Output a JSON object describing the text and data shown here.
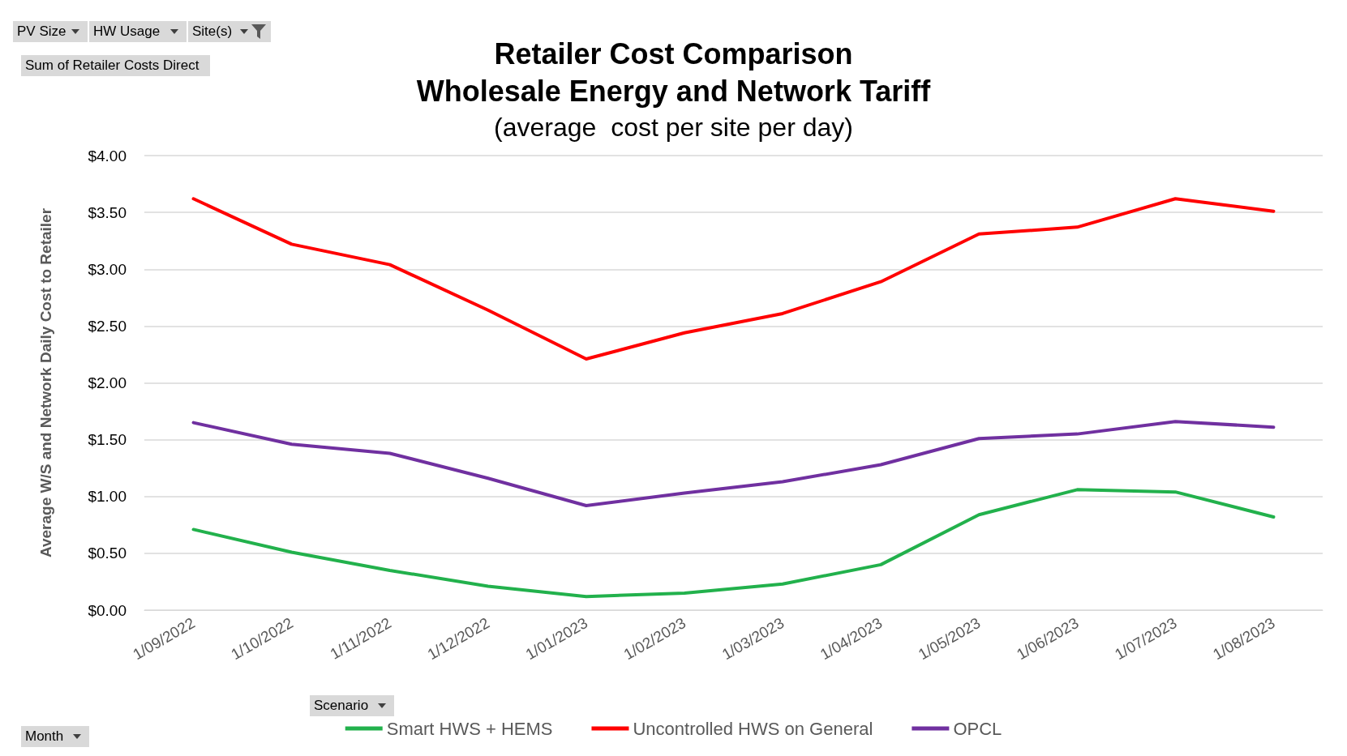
{
  "chart_data": {
    "type": "line",
    "title": "Retailer Cost Comparison\nWholesale Energy and Network Tariff",
    "subtitle": "(average  cost per site per day)",
    "ylabel": "Average W/S and Network Daily Cost to Retailer",
    "categories": [
      "1/09/2022",
      "1/10/2022",
      "1/11/2022",
      "1/12/2022",
      "1/01/2023",
      "1/02/2023",
      "1/03/2023",
      "1/04/2023",
      "1/05/2023",
      "1/06/2023",
      "1/07/2023",
      "1/08/2023"
    ],
    "series": [
      {
        "name": "Smart HWS + HEMS",
        "color": "#22b14c",
        "values": [
          0.71,
          0.51,
          0.35,
          0.21,
          0.12,
          0.15,
          0.23,
          0.4,
          0.84,
          1.06,
          1.04,
          0.82
        ]
      },
      {
        "name": "Uncontrolled HWS on General",
        "color": "#ff0000",
        "values": [
          3.62,
          3.22,
          3.04,
          2.64,
          2.21,
          2.44,
          2.61,
          2.89,
          3.31,
          3.37,
          3.62,
          3.51
        ]
      },
      {
        "name": "OPCL",
        "color": "#7030a0",
        "values": [
          1.65,
          1.46,
          1.38,
          1.16,
          0.92,
          1.03,
          1.13,
          1.28,
          1.51,
          1.55,
          1.66,
          1.61
        ]
      }
    ],
    "ylim": [
      0,
      4
    ],
    "yticks": [
      {
        "value": 0,
        "label": "$0.00"
      },
      {
        "value": 0.5,
        "label": "$0.50"
      },
      {
        "value": 1,
        "label": "$1.00"
      },
      {
        "value": 1.5,
        "label": "$1.50"
      },
      {
        "value": 2,
        "label": "$2.00"
      },
      {
        "value": 2.5,
        "label": "$2.50"
      },
      {
        "value": 3,
        "label": "$3.00"
      },
      {
        "value": 3.5,
        "label": "$3.50"
      },
      {
        "value": 4,
        "label": "$4.00"
      }
    ],
    "grid": "y",
    "legend": "bottom",
    "marker": "none",
    "line_style": "solid",
    "annotations": [
      "PV Size",
      "HW Usage",
      "Site(s)",
      "Sum of Retailer Costs Direct",
      "Scenario",
      "Month"
    ]
  }
}
